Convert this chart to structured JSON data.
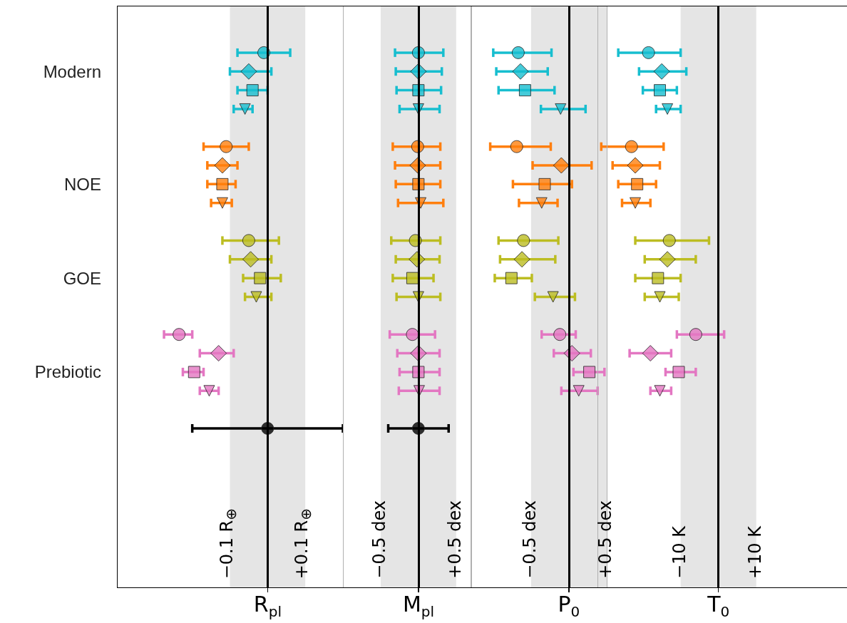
{
  "chart_data": [
    {
      "type": "scatter",
      "orientation": "horizontal",
      "categories": [
        null,
        null,
        null,
        "Modern",
        null,
        null,
        null,
        null,
        null,
        "NOE",
        null,
        null,
        null,
        null,
        "GOE",
        null,
        null,
        null,
        null,
        "Prebiotic",
        null,
        null,
        null,
        null,
        null,
        null,
        null,
        null,
        null,
        null,
        null
      ],
      "xlim": [
        -0.4,
        0.2
      ],
      "xticks": [
        {
          "value": -0.1,
          "label": "−0.1 R$_{⊕}$"
        },
        {
          "value": 0.1,
          "label": "+0.1 R$_{⊕}$"
        }
      ],
      "xlabel": "R$_{pl}$",
      "bands": [
        {
          "axis": "x",
          "from": -0.1,
          "to": 0.1,
          "color": "#e5e5e5"
        }
      ],
      "ref_lines": [
        {
          "axis": "x",
          "value": 0,
          "color": "#000000"
        }
      ],
      "series": [
        {
          "marker": "circle",
          "colors": [
            null,
            null,
            "#17becf",
            null,
            null,
            null,
            null,
            "#ff7f0e",
            null,
            null,
            null,
            null,
            "#bcbd22",
            null,
            null,
            null,
            null,
            "#e377c2",
            null,
            null,
            null,
            null,
            null,
            null,
            null,
            null,
            null,
            null,
            null,
            null,
            null
          ],
          "values": [
            null,
            null,
            -0.01,
            null,
            null,
            null,
            null,
            -0.11,
            null,
            null,
            null,
            null,
            -0.05,
            null,
            null,
            null,
            null,
            -0.235,
            null,
            null,
            null,
            null,
            null,
            null,
            null,
            null,
            null,
            null,
            null,
            null,
            null
          ],
          "errors": [
            null,
            null,
            [
              -0.08,
              0.06
            ],
            null,
            null,
            null,
            null,
            [
              -0.17,
              -0.05
            ],
            null,
            null,
            null,
            null,
            [
              -0.12,
              0.03
            ],
            null,
            null,
            null,
            null,
            [
              -0.275,
              -0.2
            ],
            null,
            null,
            null,
            null,
            null,
            null,
            null,
            null,
            null,
            null,
            null,
            null,
            null
          ]
        },
        {
          "marker": "diamond",
          "colors": [
            null,
            null,
            null,
            "#17becf",
            null,
            null,
            null,
            null,
            "#ff7f0e",
            null,
            null,
            null,
            null,
            "#bcbd22",
            null,
            null,
            null,
            null,
            "#e377c2",
            null,
            null,
            null,
            null,
            null,
            null,
            null,
            null,
            null,
            null,
            null,
            null
          ],
          "values": [
            null,
            null,
            null,
            -0.05,
            null,
            null,
            null,
            null,
            -0.12,
            null,
            null,
            null,
            null,
            -0.045,
            null,
            null,
            null,
            null,
            -0.13,
            null,
            null,
            null,
            null,
            null,
            null,
            null,
            null,
            null,
            null,
            null,
            null
          ],
          "errors": [
            null,
            null,
            null,
            [
              -0.1,
              0.01
            ],
            null,
            null,
            null,
            null,
            [
              -0.16,
              -0.08
            ],
            null,
            null,
            null,
            null,
            [
              -0.1,
              0.01
            ],
            null,
            null,
            null,
            null,
            [
              -0.18,
              -0.09
            ],
            null,
            null,
            null,
            null,
            null,
            null,
            null,
            null,
            null,
            null,
            null,
            null
          ]
        },
        {
          "marker": "square",
          "colors": [
            null,
            null,
            null,
            null,
            "#17becf",
            null,
            null,
            null,
            null,
            "#ff7f0e",
            null,
            null,
            null,
            null,
            "#bcbd22",
            null,
            null,
            null,
            null,
            "#e377c2",
            null,
            null,
            null,
            null,
            null,
            null,
            null,
            null,
            null,
            null,
            null
          ],
          "values": [
            null,
            null,
            null,
            null,
            -0.04,
            null,
            null,
            null,
            null,
            -0.12,
            null,
            null,
            null,
            null,
            -0.02,
            null,
            null,
            null,
            null,
            -0.195,
            null,
            null,
            null,
            null,
            null,
            null,
            null,
            null,
            null,
            null,
            null
          ],
          "errors": [
            null,
            null,
            null,
            null,
            [
              -0.08,
              0.0
            ],
            null,
            null,
            null,
            null,
            [
              -0.16,
              -0.085
            ],
            null,
            null,
            null,
            null,
            [
              -0.065,
              0.035
            ],
            null,
            null,
            null,
            null,
            [
              -0.225,
              -0.17
            ],
            null,
            null,
            null,
            null,
            null,
            null,
            null,
            null,
            null,
            null,
            null
          ]
        },
        {
          "marker": "triangle",
          "colors": [
            null,
            null,
            null,
            null,
            null,
            "#17becf",
            null,
            null,
            null,
            null,
            "#ff7f0e",
            null,
            null,
            null,
            null,
            "#bcbd22",
            null,
            null,
            null,
            null,
            "#e377c2",
            null,
            null,
            null,
            null,
            null,
            null,
            null,
            null,
            null,
            null
          ],
          "values": [
            null,
            null,
            null,
            null,
            null,
            -0.06,
            null,
            null,
            null,
            null,
            -0.12,
            null,
            null,
            null,
            null,
            -0.03,
            null,
            null,
            null,
            null,
            -0.155,
            null,
            null,
            null,
            null,
            null,
            null,
            null,
            null,
            null,
            null
          ],
          "errors": [
            null,
            null,
            null,
            null,
            null,
            [
              -0.09,
              -0.04
            ],
            null,
            null,
            null,
            null,
            [
              -0.15,
              -0.095
            ],
            null,
            null,
            null,
            null,
            [
              -0.06,
              0.01
            ],
            null,
            null,
            null,
            null,
            [
              -0.18,
              -0.13
            ],
            null,
            null,
            null,
            null,
            null,
            null,
            null,
            null,
            null,
            null
          ]
        },
        {
          "marker": "circle",
          "color": "#000000",
          "values": [
            null,
            null,
            null,
            null,
            null,
            null,
            null,
            null,
            null,
            null,
            null,
            null,
            null,
            null,
            null,
            null,
            null,
            null,
            null,
            null,
            null,
            null,
            0,
            null,
            null,
            null,
            null,
            null,
            null,
            null,
            null
          ],
          "errors": [
            null,
            null,
            null,
            null,
            null,
            null,
            null,
            null,
            null,
            null,
            null,
            null,
            null,
            null,
            null,
            null,
            null,
            null,
            null,
            null,
            null,
            null,
            [
              -0.2,
              0.2
            ],
            null,
            null,
            null,
            null,
            null,
            null,
            null,
            null
          ]
        }
      ]
    },
    {
      "type": "scatter",
      "orientation": "horizontal",
      "tick_labels": "x",
      "categories": [
        null,
        null,
        null,
        null,
        null,
        null,
        null,
        null,
        null,
        null,
        null,
        null,
        null,
        null,
        null,
        null,
        null,
        null,
        null,
        null,
        null,
        null,
        null,
        null,
        null,
        null,
        null,
        null,
        null,
        null,
        null
      ],
      "xlim": [
        -1.0,
        0.7
      ],
      "xticks": [
        {
          "value": -0.5,
          "label": "−0.5 dex"
        },
        {
          "value": 0.5,
          "label": "+0.5 dex"
        }
      ],
      "xlabel": "M$_{pl}$",
      "bands": [
        {
          "axis": "x",
          "from": -0.5,
          "to": 0.5,
          "color": "#e5e5e5"
        }
      ],
      "ref_lines": [
        {
          "axis": "x",
          "value": 0,
          "color": "#000000"
        }
      ],
      "series": [
        {
          "marker": "circle",
          "colors": [
            null,
            null,
            "#17becf",
            null,
            null,
            null,
            null,
            "#ff7f0e",
            null,
            null,
            null,
            null,
            "#bcbd22",
            null,
            null,
            null,
            null,
            "#e377c2",
            null,
            null,
            null,
            null,
            null,
            null,
            null,
            null,
            null,
            null,
            null,
            null,
            null
          ],
          "values": [
            null,
            null,
            0,
            null,
            null,
            null,
            null,
            -0.01,
            null,
            null,
            null,
            null,
            -0.04,
            null,
            null,
            null,
            null,
            -0.08,
            null,
            null,
            null,
            null,
            null,
            null,
            null,
            null,
            null,
            null,
            null,
            null,
            null
          ],
          "errors": [
            null,
            null,
            [
              -0.31,
              0.33
            ],
            null,
            null,
            null,
            null,
            [
              -0.34,
              0.29
            ],
            null,
            null,
            null,
            null,
            [
              -0.36,
              0.29
            ],
            null,
            null,
            null,
            null,
            [
              -0.38,
              0.22
            ],
            null,
            null,
            null,
            null,
            null,
            null,
            null,
            null,
            null,
            null,
            null,
            null,
            null
          ]
        },
        {
          "marker": "diamond",
          "colors": [
            null,
            null,
            null,
            "#17becf",
            null,
            null,
            null,
            null,
            "#ff7f0e",
            null,
            null,
            null,
            null,
            "#bcbd22",
            null,
            null,
            null,
            null,
            "#e377c2",
            null,
            null,
            null,
            null,
            null,
            null,
            null,
            null,
            null,
            null,
            null,
            null
          ],
          "values": [
            null,
            null,
            null,
            0,
            null,
            null,
            null,
            null,
            -0.01,
            null,
            null,
            null,
            null,
            -0.02,
            null,
            null,
            null,
            null,
            0,
            null,
            null,
            null,
            null,
            null,
            null,
            null,
            null,
            null,
            null,
            null,
            null
          ],
          "errors": [
            null,
            null,
            null,
            [
              -0.3,
              0.31
            ],
            null,
            null,
            null,
            null,
            [
              -0.31,
              0.29
            ],
            null,
            null,
            null,
            null,
            [
              -0.3,
              0.28
            ],
            null,
            null,
            null,
            null,
            [
              -0.28,
              0.28
            ],
            null,
            null,
            null,
            null,
            null,
            null,
            null,
            null,
            null,
            null,
            null,
            null
          ]
        },
        {
          "marker": "square",
          "colors": [
            null,
            null,
            null,
            null,
            "#17becf",
            null,
            null,
            null,
            null,
            "#ff7f0e",
            null,
            null,
            null,
            null,
            "#bcbd22",
            null,
            null,
            null,
            null,
            "#e377c2",
            null,
            null,
            null,
            null,
            null,
            null,
            null,
            null,
            null,
            null,
            null
          ],
          "values": [
            null,
            null,
            null,
            null,
            0,
            null,
            null,
            null,
            null,
            0,
            null,
            null,
            null,
            null,
            -0.08,
            null,
            null,
            null,
            null,
            0,
            null,
            null,
            null,
            null,
            null,
            null,
            null,
            null,
            null,
            null,
            null
          ],
          "errors": [
            null,
            null,
            null,
            null,
            [
              -0.29,
              0.3
            ],
            null,
            null,
            null,
            null,
            [
              -0.3,
              0.29
            ],
            null,
            null,
            null,
            null,
            [
              -0.34,
              0.2
            ],
            null,
            null,
            null,
            null,
            [
              -0.25,
              0.28
            ],
            null,
            null,
            null,
            null,
            null,
            null,
            null,
            null,
            null,
            null,
            null
          ]
        },
        {
          "marker": "triangle",
          "colors": [
            null,
            null,
            null,
            null,
            null,
            "#17becf",
            null,
            null,
            null,
            null,
            "#ff7f0e",
            null,
            null,
            null,
            null,
            "#bcbd22",
            null,
            null,
            null,
            null,
            "#e377c2",
            null,
            null,
            null,
            null,
            null,
            null,
            null,
            null,
            null,
            null
          ],
          "values": [
            null,
            null,
            null,
            null,
            null,
            0,
            null,
            null,
            null,
            null,
            0.03,
            null,
            null,
            null,
            null,
            0,
            null,
            null,
            null,
            null,
            0.01,
            null,
            null,
            null,
            null,
            null,
            null,
            null,
            null,
            null,
            null
          ],
          "errors": [
            null,
            null,
            null,
            null,
            null,
            [
              -0.25,
              0.28
            ],
            null,
            null,
            null,
            null,
            [
              -0.27,
              0.33
            ],
            null,
            null,
            null,
            null,
            [
              -0.29,
              0.29
            ],
            null,
            null,
            null,
            null,
            [
              -0.26,
              0.28
            ],
            null,
            null,
            null,
            null,
            null,
            null,
            null,
            null,
            null,
            null
          ]
        },
        {
          "marker": "circle",
          "color": "#000000",
          "values": [
            null,
            null,
            null,
            null,
            null,
            null,
            null,
            null,
            null,
            null,
            null,
            null,
            null,
            null,
            null,
            null,
            null,
            null,
            null,
            null,
            null,
            null,
            0,
            null,
            null,
            null,
            null,
            null,
            null,
            null,
            null
          ],
          "errors": [
            null,
            null,
            null,
            null,
            null,
            null,
            null,
            null,
            null,
            null,
            null,
            null,
            null,
            null,
            null,
            null,
            null,
            null,
            null,
            null,
            null,
            null,
            [
              -0.4,
              0.4
            ],
            null,
            null,
            null,
            null,
            null,
            null,
            null,
            null
          ]
        }
      ]
    },
    {
      "type": "scatter",
      "orientation": "horizontal",
      "tick_labels": "x",
      "categories": [
        null,
        null,
        null,
        null,
        null,
        null,
        null,
        null,
        null,
        null,
        null,
        null,
        null,
        null,
        null,
        null,
        null,
        null,
        null,
        null,
        null,
        null,
        null,
        null,
        null,
        null,
        null,
        null,
        null,
        null,
        null
      ],
      "xlim": [
        -1.3,
        0.5
      ],
      "xticks": [
        {
          "value": -0.5,
          "label": "−0.5 dex"
        },
        {
          "value": 0.5,
          "label": "+0.5 dex"
        }
      ],
      "xlabel": "P$_{0}$",
      "bands": [
        {
          "axis": "x",
          "from": -0.5,
          "to": 0.5,
          "color": "#e5e5e5"
        }
      ],
      "ref_lines": [
        {
          "axis": "x",
          "value": 0,
          "color": "#000000"
        }
      ],
      "series": [
        {
          "marker": "circle",
          "colors": [
            null,
            null,
            "#17becf",
            null,
            null,
            null,
            null,
            "#ff7f0e",
            null,
            null,
            null,
            null,
            "#bcbd22",
            null,
            null,
            null,
            null,
            "#e377c2",
            null,
            null,
            null,
            null,
            null,
            null,
            null,
            null,
            null,
            null,
            null,
            null,
            null
          ],
          "values": [
            null,
            null,
            -0.67,
            null,
            null,
            null,
            null,
            -0.69,
            null,
            null,
            null,
            null,
            -0.6,
            null,
            null,
            null,
            null,
            -0.12,
            null,
            null,
            null,
            null,
            null,
            null,
            null,
            null,
            null,
            null,
            null,
            null,
            null
          ],
          "errors": [
            null,
            null,
            [
              -1.0,
              -0.23
            ],
            null,
            null,
            null,
            null,
            [
              -1.04,
              -0.24
            ],
            null,
            null,
            null,
            null,
            [
              -0.93,
              -0.14
            ],
            null,
            null,
            null,
            null,
            [
              -0.36,
              0.09
            ],
            null,
            null,
            null,
            null,
            null,
            null,
            null,
            null,
            null,
            null,
            null,
            null,
            null
          ]
        },
        {
          "marker": "diamond",
          "colors": [
            null,
            null,
            null,
            "#17becf",
            null,
            null,
            null,
            null,
            "#ff7f0e",
            null,
            null,
            null,
            null,
            "#bcbd22",
            null,
            null,
            null,
            null,
            "#e377c2",
            null,
            null,
            null,
            null,
            null,
            null,
            null,
            null,
            null,
            null,
            null,
            null
          ],
          "values": [
            null,
            null,
            null,
            -0.64,
            null,
            null,
            null,
            null,
            -0.1,
            null,
            null,
            null,
            null,
            -0.62,
            null,
            null,
            null,
            null,
            0.04,
            null,
            null,
            null,
            null,
            null,
            null,
            null,
            null,
            null,
            null,
            null,
            null
          ],
          "errors": [
            null,
            null,
            null,
            [
              -0.96,
              -0.28
            ],
            null,
            null,
            null,
            null,
            [
              -0.48,
              0.3
            ],
            null,
            null,
            null,
            null,
            [
              -0.91,
              -0.18
            ],
            null,
            null,
            null,
            null,
            [
              -0.2,
              0.29
            ],
            null,
            null,
            null,
            null,
            null,
            null,
            null,
            null,
            null,
            null,
            null,
            null
          ]
        },
        {
          "marker": "square",
          "colors": [
            null,
            null,
            null,
            null,
            "#17becf",
            null,
            null,
            null,
            null,
            "#ff7f0e",
            null,
            null,
            null,
            null,
            "#bcbd22",
            null,
            null,
            null,
            null,
            "#e377c2",
            null,
            null,
            null,
            null,
            null,
            null,
            null,
            null,
            null,
            null,
            null
          ],
          "values": [
            null,
            null,
            null,
            null,
            -0.58,
            null,
            null,
            null,
            null,
            -0.32,
            null,
            null,
            null,
            null,
            -0.76,
            null,
            null,
            null,
            null,
            0.27,
            null,
            null,
            null,
            null,
            null,
            null,
            null,
            null,
            null,
            null,
            null
          ],
          "errors": [
            null,
            null,
            null,
            null,
            [
              -0.93,
              -0.19
            ],
            null,
            null,
            null,
            null,
            [
              -0.74,
              0.04
            ],
            null,
            null,
            null,
            null,
            [
              -0.98,
              -0.49
            ],
            null,
            null,
            null,
            null,
            [
              0.06,
              0.47
            ],
            null,
            null,
            null,
            null,
            null,
            null,
            null,
            null,
            null,
            null,
            null
          ]
        },
        {
          "marker": "triangle",
          "colors": [
            null,
            null,
            null,
            null,
            null,
            "#17becf",
            null,
            null,
            null,
            null,
            "#ff7f0e",
            null,
            null,
            null,
            null,
            "#bcbd22",
            null,
            null,
            null,
            null,
            "#e377c2",
            null,
            null,
            null,
            null,
            null,
            null,
            null,
            null,
            null,
            null
          ],
          "values": [
            null,
            null,
            null,
            null,
            null,
            -0.11,
            null,
            null,
            null,
            null,
            -0.36,
            null,
            null,
            null,
            null,
            -0.21,
            null,
            null,
            null,
            null,
            0.13,
            null,
            null,
            null,
            null,
            null,
            null,
            null,
            null,
            null,
            null
          ],
          "errors": [
            null,
            null,
            null,
            null,
            null,
            [
              -0.37,
              0.22
            ],
            null,
            null,
            null,
            null,
            [
              -0.66,
              -0.15
            ],
            null,
            null,
            null,
            null,
            [
              -0.45,
              0.08
            ],
            null,
            null,
            null,
            null,
            [
              -0.1,
              0.38
            ],
            null,
            null,
            null,
            null,
            null,
            null,
            null,
            null,
            null,
            null
          ]
        }
      ]
    },
    {
      "type": "scatter",
      "orientation": "horizontal",
      "tick_labels": "x",
      "categories": [
        null,
        null,
        null,
        null,
        null,
        null,
        null,
        null,
        null,
        null,
        null,
        null,
        null,
        null,
        null,
        null,
        null,
        null,
        null,
        null,
        null,
        null,
        null,
        null,
        null,
        null,
        null,
        null,
        null,
        null,
        null
      ],
      "xlim": [
        -32,
        34
      ],
      "xticks": [
        {
          "value": -10,
          "label": "−10 K"
        },
        {
          "value": 10,
          "label": "+10 K"
        }
      ],
      "xlabel": "T$_{0}$",
      "bands": [
        {
          "axis": "x",
          "from": -10,
          "to": 10,
          "color": "#e5e5e5"
        }
      ],
      "ref_lines": [
        {
          "axis": "x",
          "value": 0,
          "color": "#000000"
        }
      ],
      "series": [
        {
          "marker": "circle",
          "colors": [
            null,
            null,
            "#17becf",
            null,
            null,
            null,
            null,
            "#ff7f0e",
            null,
            null,
            null,
            null,
            "#bcbd22",
            null,
            null,
            null,
            null,
            "#e377c2",
            null,
            null,
            null,
            null,
            null,
            null,
            null,
            null,
            null,
            null,
            null,
            null,
            null
          ],
          "values": [
            null,
            null,
            -18.5,
            null,
            null,
            null,
            null,
            -23,
            null,
            null,
            null,
            null,
            -13,
            null,
            null,
            null,
            null,
            -6,
            null,
            null,
            null,
            null,
            null,
            null,
            null,
            null,
            null,
            null,
            null,
            null,
            null
          ],
          "errors": [
            null,
            null,
            [
              -26.5,
              -10
            ],
            null,
            null,
            null,
            null,
            [
              -31,
              -14.5
            ],
            null,
            null,
            null,
            null,
            [
              -22,
              -2.5
            ],
            null,
            null,
            null,
            null,
            [
              -11,
              1.5
            ],
            null,
            null,
            null,
            null,
            null,
            null,
            null,
            null,
            null,
            null,
            null,
            null,
            null
          ]
        },
        {
          "marker": "diamond",
          "colors": [
            null,
            null,
            null,
            "#17becf",
            null,
            null,
            null,
            null,
            "#ff7f0e",
            null,
            null,
            null,
            null,
            "#bcbd22",
            null,
            null,
            null,
            null,
            "#e377c2",
            null,
            null,
            null,
            null,
            null,
            null,
            null,
            null,
            null,
            null,
            null,
            null
          ],
          "values": [
            null,
            null,
            null,
            -15,
            null,
            null,
            null,
            null,
            -22,
            null,
            null,
            null,
            null,
            -13.5,
            null,
            null,
            null,
            null,
            -18,
            null,
            null,
            null,
            null,
            null,
            null,
            null,
            null,
            null,
            null,
            null,
            null
          ],
          "errors": [
            null,
            null,
            null,
            [
              -21,
              -8.5
            ],
            null,
            null,
            null,
            null,
            [
              -28,
              -15.5
            ],
            null,
            null,
            null,
            null,
            [
              -19.5,
              -6
            ],
            null,
            null,
            null,
            null,
            [
              -23.5,
              -12.5
            ],
            null,
            null,
            null,
            null,
            null,
            null,
            null,
            null,
            null,
            null,
            null,
            null
          ]
        },
        {
          "marker": "square",
          "colors": [
            null,
            null,
            null,
            null,
            "#17becf",
            null,
            null,
            null,
            null,
            "#ff7f0e",
            null,
            null,
            null,
            null,
            "#bcbd22",
            null,
            null,
            null,
            null,
            "#e377c2",
            null,
            null,
            null,
            null,
            null,
            null,
            null,
            null,
            null,
            null,
            null
          ],
          "values": [
            null,
            null,
            null,
            null,
            -15.5,
            null,
            null,
            null,
            null,
            -21.5,
            null,
            null,
            null,
            null,
            -16,
            null,
            null,
            null,
            null,
            -10.5,
            null,
            null,
            null,
            null,
            null,
            null,
            null,
            null,
            null,
            null,
            null
          ],
          "errors": [
            null,
            null,
            null,
            null,
            [
              -20,
              -11
            ],
            null,
            null,
            null,
            null,
            [
              -26.5,
              -16.5
            ],
            null,
            null,
            null,
            null,
            [
              -22,
              -10
            ],
            null,
            null,
            null,
            null,
            [
              -14,
              -6
            ],
            null,
            null,
            null,
            null,
            null,
            null,
            null,
            null,
            null,
            null,
            null
          ]
        },
        {
          "marker": "triangle",
          "colors": [
            null,
            null,
            null,
            null,
            null,
            "#17becf",
            null,
            null,
            null,
            null,
            "#ff7f0e",
            null,
            null,
            null,
            null,
            "#bcbd22",
            null,
            null,
            null,
            null,
            "#e377c2",
            null,
            null,
            null,
            null,
            null,
            null,
            null,
            null,
            null,
            null
          ],
          "values": [
            null,
            null,
            null,
            null,
            null,
            -13.5,
            null,
            null,
            null,
            null,
            -22,
            null,
            null,
            null,
            null,
            -15.5,
            null,
            null,
            null,
            null,
            -15.5,
            null,
            null,
            null,
            null,
            null,
            null,
            null,
            null,
            null,
            null
          ],
          "errors": [
            null,
            null,
            null,
            null,
            null,
            [
              -16.5,
              -10
            ],
            null,
            null,
            null,
            null,
            [
              -25.5,
              -18
            ],
            null,
            null,
            null,
            null,
            [
              -19.5,
              -10.5
            ],
            null,
            null,
            null,
            null,
            [
              -18,
              -12.5
            ],
            null,
            null,
            null,
            null,
            null,
            null,
            null,
            null,
            null,
            null
          ]
        }
      ]
    }
  ]
}
